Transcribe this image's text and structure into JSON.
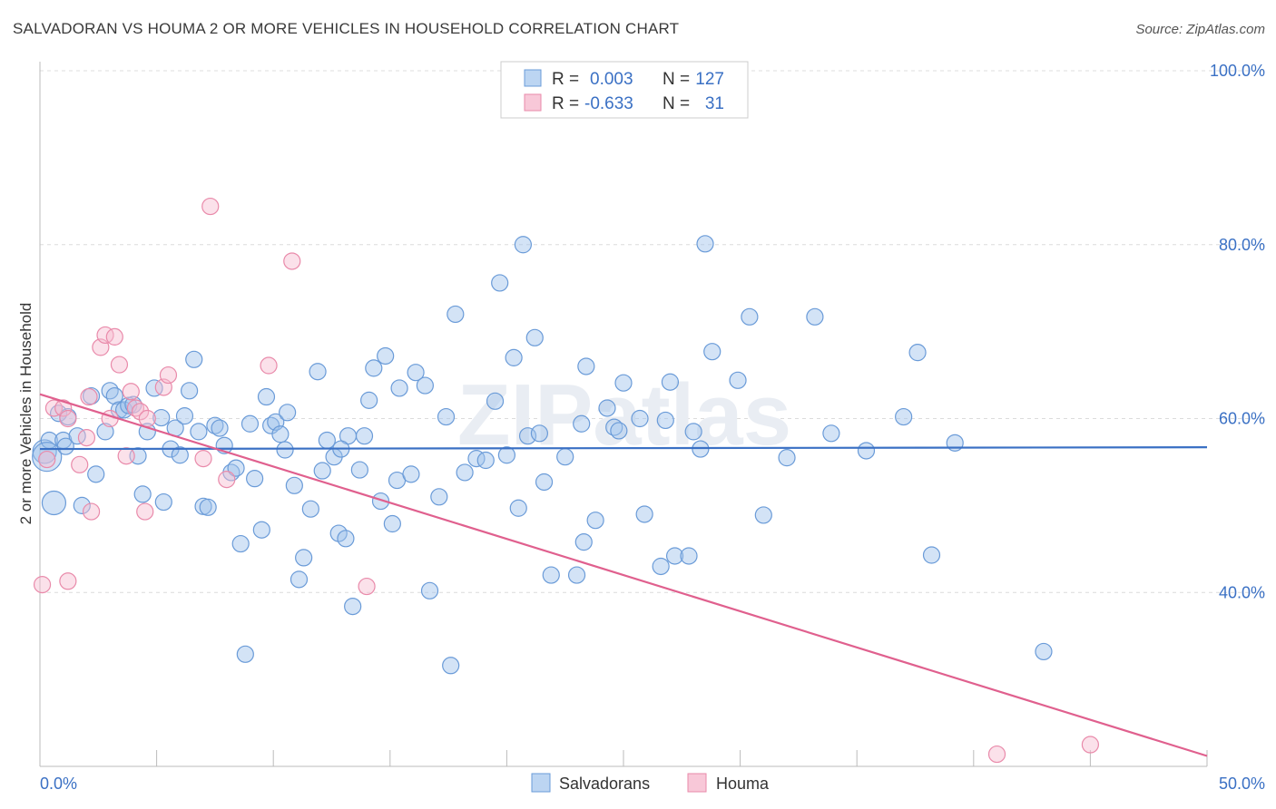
{
  "chart_data": {
    "type": "scatter",
    "title": "SALVADORAN VS HOUMA 2 OR MORE VEHICLES IN HOUSEHOLD CORRELATION CHART",
    "source": "Source: ZipAtlas.com",
    "ylabel": "2 or more Vehicles in Household",
    "xlim": [
      0,
      50
    ],
    "ylim": [
      20,
      100
    ],
    "x_tick_labels": [
      "0.0%",
      "50.0%"
    ],
    "y_ticks": [
      40,
      60,
      80,
      100
    ],
    "y_tick_labels": [
      "40.0%",
      "60.0%",
      "80.0%",
      "100.0%"
    ],
    "watermark": "ZIPatlas",
    "legend": {
      "rows": [
        {
          "r_label": "R =",
          "r_value": "0.003",
          "n_label": "N =",
          "n_value": "127"
        },
        {
          "r_label": "R =",
          "r_value": "-0.633",
          "n_label": "N =",
          "n_value": "31"
        }
      ]
    },
    "series": [
      {
        "name": "Salvadorans",
        "color": "#9ec2ec",
        "stroke": "#6a9bd8",
        "line_color": "#3a70c4",
        "trend": {
          "x": [
            0,
            50
          ],
          "y": [
            56.5,
            56.7
          ]
        },
        "points": [
          [
            0.2,
            56.2
          ],
          [
            0.4,
            57.5
          ],
          [
            0.6,
            50.3
          ],
          [
            0.8,
            60.6
          ],
          [
            1.0,
            57.5
          ],
          [
            1.2,
            60.2
          ],
          [
            1.6,
            58.0
          ],
          [
            1.8,
            50.0
          ],
          [
            2.2,
            62.6
          ],
          [
            2.4,
            53.6
          ],
          [
            2.8,
            58.5
          ],
          [
            3.0,
            63.2
          ],
          [
            3.2,
            62.6
          ],
          [
            3.4,
            61.0
          ],
          [
            3.6,
            61.0
          ],
          [
            3.8,
            61.5
          ],
          [
            4.0,
            61.6
          ],
          [
            4.2,
            55.7
          ],
          [
            4.4,
            51.3
          ],
          [
            4.6,
            58.5
          ],
          [
            4.9,
            63.5
          ],
          [
            5.2,
            60.1
          ],
          [
            5.3,
            50.4
          ],
          [
            5.6,
            56.5
          ],
          [
            5.8,
            58.9
          ],
          [
            6.0,
            55.8
          ],
          [
            6.2,
            60.3
          ],
          [
            6.4,
            63.2
          ],
          [
            6.6,
            66.8
          ],
          [
            6.8,
            58.5
          ],
          [
            7.0,
            49.9
          ],
          [
            7.2,
            49.8
          ],
          [
            7.5,
            59.2
          ],
          [
            7.7,
            58.9
          ],
          [
            7.9,
            56.9
          ],
          [
            8.2,
            53.8
          ],
          [
            8.4,
            54.3
          ],
          [
            8.6,
            45.6
          ],
          [
            8.8,
            32.9
          ],
          [
            9.0,
            59.4
          ],
          [
            9.2,
            53.1
          ],
          [
            9.5,
            47.2
          ],
          [
            9.7,
            62.5
          ],
          [
            9.9,
            59.2
          ],
          [
            10.1,
            59.6
          ],
          [
            10.3,
            58.2
          ],
          [
            10.5,
            56.4
          ],
          [
            10.6,
            60.7
          ],
          [
            10.9,
            52.3
          ],
          [
            11.1,
            41.5
          ],
          [
            11.3,
            44.0
          ],
          [
            11.6,
            49.6
          ],
          [
            11.9,
            65.4
          ],
          [
            12.1,
            54.0
          ],
          [
            12.3,
            57.5
          ],
          [
            12.6,
            55.6
          ],
          [
            12.8,
            46.8
          ],
          [
            13.1,
            46.2
          ],
          [
            13.2,
            58.0
          ],
          [
            13.4,
            38.4
          ],
          [
            13.7,
            54.1
          ],
          [
            13.9,
            58.0
          ],
          [
            14.1,
            62.1
          ],
          [
            14.3,
            65.8
          ],
          [
            14.6,
            50.5
          ],
          [
            14.8,
            67.2
          ],
          [
            15.1,
            47.9
          ],
          [
            15.3,
            52.9
          ],
          [
            15.4,
            63.5
          ],
          [
            15.9,
            53.6
          ],
          [
            16.1,
            65.3
          ],
          [
            16.5,
            63.8
          ],
          [
            16.7,
            40.2
          ],
          [
            17.1,
            51.0
          ],
          [
            17.4,
            60.2
          ],
          [
            17.6,
            31.6
          ],
          [
            17.8,
            72.0
          ],
          [
            18.2,
            53.8
          ],
          [
            18.7,
            55.4
          ],
          [
            19.1,
            55.2
          ],
          [
            19.5,
            62.0
          ],
          [
            19.7,
            75.6
          ],
          [
            20.0,
            55.8
          ],
          [
            20.3,
            67.0
          ],
          [
            20.5,
            49.7
          ],
          [
            20.7,
            80.0
          ],
          [
            20.9,
            58.0
          ],
          [
            21.2,
            69.3
          ],
          [
            21.4,
            58.3
          ],
          [
            21.6,
            52.7
          ],
          [
            21.9,
            42.0
          ],
          [
            22.5,
            55.6
          ],
          [
            23.0,
            42.0
          ],
          [
            23.2,
            59.4
          ],
          [
            23.3,
            45.8
          ],
          [
            23.4,
            66.0
          ],
          [
            23.8,
            48.3
          ],
          [
            24.3,
            61.2
          ],
          [
            24.6,
            59.0
          ],
          [
            24.8,
            58.6
          ],
          [
            25.0,
            64.1
          ],
          [
            25.7,
            60.0
          ],
          [
            25.9,
            49.0
          ],
          [
            26.6,
            43.0
          ],
          [
            26.8,
            59.8
          ],
          [
            27.0,
            64.2
          ],
          [
            27.2,
            44.2
          ],
          [
            27.8,
            44.2
          ],
          [
            28.0,
            58.5
          ],
          [
            28.3,
            56.5
          ],
          [
            28.5,
            80.1
          ],
          [
            28.8,
            67.7
          ],
          [
            29.9,
            64.4
          ],
          [
            30.4,
            71.7
          ],
          [
            31.0,
            48.9
          ],
          [
            32.0,
            55.5
          ],
          [
            33.2,
            71.7
          ],
          [
            33.9,
            58.3
          ],
          [
            35.4,
            56.3
          ],
          [
            37.0,
            60.2
          ],
          [
            37.6,
            67.6
          ],
          [
            38.2,
            44.3
          ],
          [
            39.2,
            57.2
          ],
          [
            43.0,
            33.2
          ],
          [
            0.3,
            55.6
          ],
          [
            1.1,
            56.8
          ],
          [
            12.9,
            56.5
          ]
        ],
        "sizes": [
          26,
          18,
          26,
          18,
          18,
          18,
          18,
          18,
          18,
          18,
          18,
          18,
          18,
          18,
          18,
          18,
          18,
          18,
          18,
          18,
          18,
          18,
          18,
          18,
          18,
          18,
          18,
          18,
          18,
          18,
          18,
          18,
          18,
          18,
          18,
          18,
          18,
          18,
          18,
          18,
          18,
          18,
          18,
          18,
          18,
          18,
          18,
          18,
          18,
          18,
          18,
          18,
          18,
          18,
          18,
          18,
          18,
          18,
          18,
          18,
          18,
          18,
          18,
          18,
          18,
          18,
          18,
          18,
          18,
          18,
          18,
          18,
          18,
          18,
          18,
          18,
          18,
          18,
          18,
          18,
          18,
          18,
          18,
          18,
          18,
          18,
          18,
          18,
          18,
          18,
          18,
          18,
          18,
          18,
          18,
          18,
          18,
          18,
          18,
          18,
          18,
          18,
          18,
          18,
          18,
          18,
          18,
          18,
          18,
          18,
          18,
          18,
          18,
          18,
          18,
          18,
          18,
          18,
          18,
          18,
          18,
          18,
          18,
          18,
          32,
          18,
          18
        ]
      },
      {
        "name": "Houma",
        "color": "#f6bcd0",
        "stroke": "#e98aaa",
        "line_color": "#e0608e",
        "trend": {
          "x": [
            0,
            50
          ],
          "y": [
            62.8,
            21.2
          ]
        },
        "points": [
          [
            0.1,
            40.9
          ],
          [
            0.3,
            55.3
          ],
          [
            0.6,
            61.2
          ],
          [
            1.0,
            61.2
          ],
          [
            1.2,
            60.0
          ],
          [
            1.2,
            41.3
          ],
          [
            1.7,
            54.7
          ],
          [
            2.0,
            57.8
          ],
          [
            2.1,
            62.5
          ],
          [
            2.2,
            49.3
          ],
          [
            2.6,
            68.2
          ],
          [
            2.8,
            69.6
          ],
          [
            3.0,
            60.0
          ],
          [
            3.2,
            69.4
          ],
          [
            3.4,
            66.2
          ],
          [
            3.7,
            55.7
          ],
          [
            3.9,
            63.1
          ],
          [
            4.1,
            61.2
          ],
          [
            4.3,
            60.8
          ],
          [
            4.5,
            49.3
          ],
          [
            4.6,
            60.0
          ],
          [
            5.3,
            63.6
          ],
          [
            5.5,
            65.0
          ],
          [
            7.0,
            55.4
          ],
          [
            7.3,
            84.4
          ],
          [
            8.0,
            53.0
          ],
          [
            9.8,
            66.1
          ],
          [
            10.8,
            78.1
          ],
          [
            14.0,
            40.7
          ],
          [
            41.0,
            21.4
          ],
          [
            45.0,
            22.5
          ]
        ],
        "sizes": [
          18,
          18,
          18,
          18,
          18,
          18,
          18,
          18,
          18,
          18,
          18,
          18,
          18,
          18,
          18,
          18,
          18,
          18,
          18,
          18,
          18,
          18,
          18,
          18,
          18,
          18,
          18,
          18,
          18,
          18,
          18
        ]
      }
    ]
  }
}
